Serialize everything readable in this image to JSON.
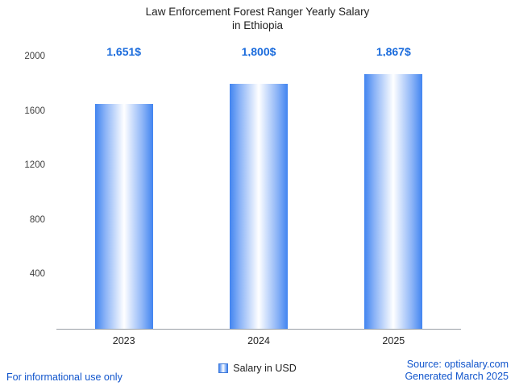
{
  "chart_data": {
    "type": "bar",
    "title": "Law Enforcement Forest Ranger Yearly Salary in Ethiopia",
    "title_lines": [
      "Law Enforcement Forest Ranger Yearly Salary",
      "in Ethiopia"
    ],
    "categories": [
      "2023",
      "2024",
      "2025"
    ],
    "series": [
      {
        "name": "Salary in USD",
        "values": [
          1651,
          1800,
          1867
        ]
      }
    ],
    "value_labels": [
      "1,651$",
      "1,800$",
      "1,867$"
    ],
    "xlabel": "",
    "ylabel": "",
    "ylim": [
      0,
      2000
    ],
    "yticks": [
      400,
      800,
      1200,
      1600,
      2000
    ],
    "grid": false,
    "legend_position": "bottom"
  },
  "legend": {
    "label": "Salary in USD"
  },
  "footer": {
    "disclaimer": "For informational use only",
    "source": "Source: optisalary.com",
    "generated": "Generated March 2025"
  },
  "colors": {
    "bar_edge": "#4184f0",
    "bar_mid": "#ffffff",
    "annotation": "#1a6bdc",
    "link": "#1155cc",
    "axis_text": "#404040",
    "title_text": "#1f1f1f"
  }
}
